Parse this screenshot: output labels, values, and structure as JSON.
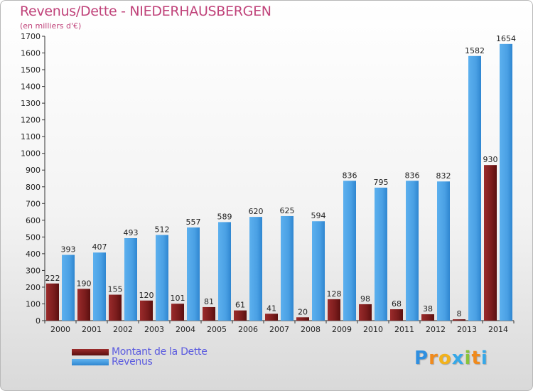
{
  "title": "Revenus/Dette - NIEDERHAUSBERGEN",
  "subtitle": "(en milliers d'€)",
  "legend": {
    "dette_label": "Montant de la Dette",
    "revenus_label": "Revenus"
  },
  "logo": {
    "letters": [
      "P",
      "r",
      "o",
      "x",
      "i",
      "t",
      "i"
    ],
    "colors": [
      "#2f8fe0",
      "#f08a1c",
      "#f2b21c",
      "#36a8e8",
      "#88c33a",
      "#f08a1c",
      "#36a8e8"
    ]
  },
  "colors": {
    "dette": "#7a1c1c",
    "revenus": "#4ca3e6",
    "title": "#c0437a",
    "legend_text": "#5a5adf"
  },
  "chart_data": {
    "type": "bar",
    "categories": [
      "2000",
      "2001",
      "2002",
      "2003",
      "2004",
      "2005",
      "2006",
      "2007",
      "2008",
      "2009",
      "2010",
      "2011",
      "2012",
      "2013",
      "2014"
    ],
    "series": [
      {
        "name": "Montant de la Dette",
        "values": [
          222,
          190,
          155,
          120,
          101,
          81,
          61,
          41,
          20,
          128,
          98,
          68,
          38,
          8,
          930
        ]
      },
      {
        "name": "Revenus",
        "values": [
          393,
          407,
          493,
          512,
          557,
          589,
          620,
          625,
          594,
          836,
          795,
          836,
          832,
          1582,
          1654
        ]
      }
    ],
    "ylim": [
      0,
      1700
    ],
    "yticks": [
      0,
      100,
      200,
      300,
      400,
      500,
      600,
      700,
      800,
      900,
      1000,
      1100,
      1200,
      1300,
      1400,
      1500,
      1600,
      1700
    ],
    "grid": false,
    "legend_position": "bottom-left"
  }
}
